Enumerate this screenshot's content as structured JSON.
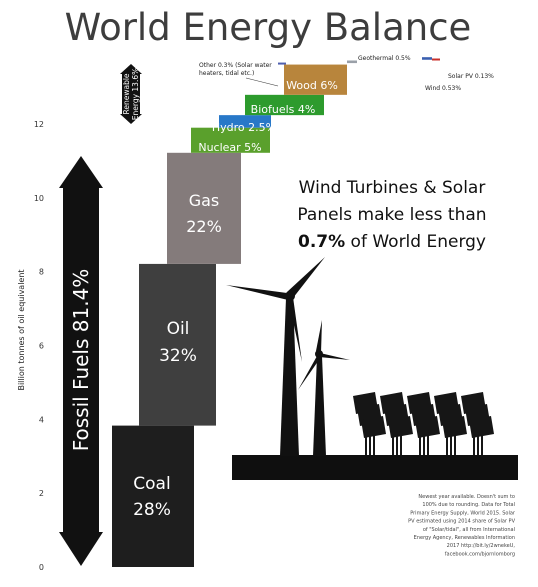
{
  "chart_data": {
    "type": "bar",
    "title": "World Energy Balance",
    "ylabel": "Billion tonnes of oil equivalent",
    "ylim": [
      0,
      12
    ],
    "yticks": [
      0,
      2,
      4,
      6,
      8,
      10,
      12
    ],
    "stacked_waterfall": true,
    "categories": [
      "Coal",
      "Oil",
      "Gas",
      "Nuclear",
      "Hydro",
      "Biofuels",
      "Wood",
      "Other",
      "Geothermal",
      "Solar PV",
      "Wind"
    ],
    "series": [
      {
        "values": [
          3.83,
          4.38,
          3.01,
          0.68,
          0.34,
          0.55,
          0.82,
          0.04,
          0.07,
          0.02,
          0.07
        ],
        "labels": [
          "Coal",
          "Oil",
          "Gas",
          "Nuclear",
          "Hydro",
          "Biofuels",
          "Wood",
          "Other",
          "Geothermal",
          "Solar PV",
          "Wind"
        ],
        "percents": [
          "28%",
          "32%",
          "22%",
          "5%",
          "2.5%",
          "4%",
          "6%",
          "0.3%",
          "0.5%",
          "0.13%",
          "0.53%"
        ],
        "colors": [
          "#1e1e1e",
          "#3f3f3f",
          "#847b7b",
          "#5aa02c",
          "#2878c8",
          "#2d9b2d",
          "#b8853c",
          "#5060b0",
          "#9aa0a8",
          "#c8302a",
          "#3a5fb0"
        ]
      }
    ],
    "bar_texts": {
      "coal": "Coal",
      "coal_pct": "28%",
      "oil": "Oil",
      "oil_pct": "32%",
      "gas": "Gas",
      "gas_pct": "22%",
      "nuclear": "Nuclear 5%",
      "hydro": "Hydro 2.5%",
      "biofuels": "Biofuels 4%",
      "wood": "Wood 6%"
    },
    "callouts": {
      "other_line1": "Other 0.3% (Solar water",
      "other_line2": "heaters, tidal etc.)",
      "geothermal": "Geothermal 0.5%",
      "solar": "Solar PV 0.13%",
      "wind": "Wind 0.53%"
    },
    "brackets": {
      "fossil": "Fossil Fuels 81.4%",
      "renewable_line1": "Renewable",
      "renewable_line2": "Energy 13.6%"
    },
    "headline": {
      "line1": "Wind Turbines & Solar",
      "line2": "Panels make less than",
      "line3_bold": "0.7%",
      "line3_rest": " of World Energy"
    },
    "footnote": [
      "Newest year available. Doesn't sum to",
      "100% due to rounding. Data for Total",
      "Primary Energy Supply, World 2015. Solar",
      "PV estimated using 2014 share of Solar PV",
      "of \"Solar/tidal\", all from International",
      "Energy Agency, Renewables Information",
      "2017 http://bit.ly/2wnekeU,",
      "facebook.com/bjornlomborg"
    ]
  }
}
